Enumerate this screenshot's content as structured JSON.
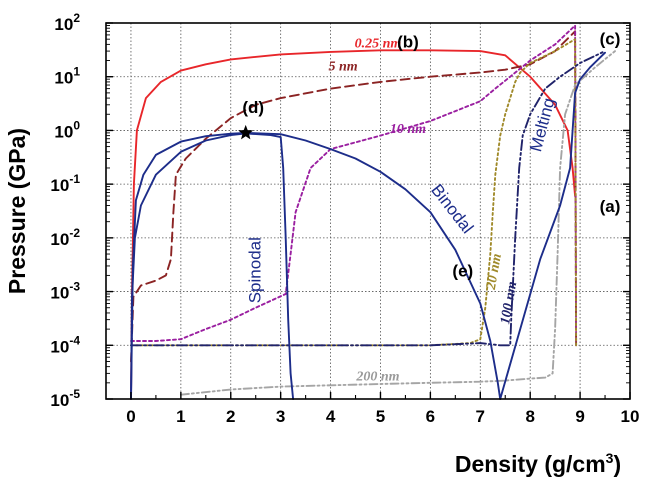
{
  "chart_data": {
    "type": "line",
    "xlabel": "Density (g/cm",
    "xlabel_sup": "3",
    "xlabel_tail": ")",
    "ylabel": "Pressure (GPa)",
    "y_scale": "log",
    "xlim": [
      -0.5,
      10
    ],
    "ylim": [
      1e-05,
      100
    ],
    "x_ticks": [
      "0",
      "1",
      "2",
      "3",
      "4",
      "5",
      "6",
      "7",
      "8",
      "9",
      "10"
    ],
    "y_ticks": [
      {
        "base": "10",
        "exp": "-5"
      },
      {
        "base": "10",
        "exp": "-4"
      },
      {
        "base": "10",
        "exp": "-3"
      },
      {
        "base": "10",
        "exp": "-2"
      },
      {
        "base": "10",
        "exp": "-1"
      },
      {
        "base": "10",
        "exp": "0"
      },
      {
        "base": "10",
        "exp": "1"
      },
      {
        "base": "10",
        "exp": "2"
      }
    ],
    "grid": true,
    "series": [
      {
        "name": "0.25 nm",
        "color": "#e8262a",
        "dash": "solid",
        "points": [
          [
            0,
            1e-05
          ],
          [
            0.02,
            0.001
          ],
          [
            0.06,
            0.1
          ],
          [
            0.12,
            1
          ],
          [
            0.3,
            4
          ],
          [
            0.6,
            8
          ],
          [
            1.0,
            13
          ],
          [
            1.5,
            17
          ],
          [
            2,
            21
          ],
          [
            3,
            26
          ],
          [
            4,
            29
          ],
          [
            5,
            31
          ],
          [
            6,
            31
          ],
          [
            7,
            30
          ],
          [
            7.5,
            25
          ],
          [
            8,
            10
          ],
          [
            8.5,
            3
          ],
          [
            8.75,
            1
          ],
          [
            8.85,
            0.2
          ],
          [
            8.9,
            0.06
          ]
        ]
      },
      {
        "name": "5 nm",
        "color": "#8b2323",
        "dash": "9,5",
        "points": [
          [
            0,
            5e-05
          ],
          [
            0.05,
            0.0008
          ],
          [
            0.2,
            0.0013
          ],
          [
            0.5,
            0.0016
          ],
          [
            0.7,
            0.002
          ],
          [
            0.8,
            0.004
          ],
          [
            0.85,
            0.03
          ],
          [
            0.9,
            0.15
          ],
          [
            1.1,
            0.3
          ],
          [
            1.5,
            0.7
          ],
          [
            2,
            1.7
          ],
          [
            2.5,
            3
          ],
          [
            3,
            4
          ],
          [
            4,
            6
          ],
          [
            5,
            8
          ],
          [
            6,
            10
          ],
          [
            7,
            12
          ],
          [
            7.5,
            13.5
          ],
          [
            8,
            17
          ],
          [
            8.5,
            30
          ],
          [
            8.9,
            70
          ],
          [
            8.92,
            0.0001
          ]
        ]
      },
      {
        "name": "10 nm",
        "color": "#9a1fa0",
        "dash": "3,3",
        "points": [
          [
            0,
            0.00012
          ],
          [
            0.5,
            0.00012
          ],
          [
            1,
            0.00013
          ],
          [
            1.5,
            0.0002
          ],
          [
            2,
            0.0003
          ],
          [
            2.5,
            0.0005
          ],
          [
            3.1,
            0.0009
          ],
          [
            3.2,
            0.005
          ],
          [
            3.3,
            0.03
          ],
          [
            3.6,
            0.2
          ],
          [
            4,
            0.45
          ],
          [
            5,
            0.8
          ],
          [
            6,
            1.5
          ],
          [
            7,
            3.5
          ],
          [
            7.3,
            6
          ],
          [
            7.6,
            10
          ],
          [
            8,
            20
          ],
          [
            8.5,
            40
          ],
          [
            8.9,
            90
          ],
          [
            8.92,
            0.0001
          ]
        ]
      },
      {
        "name": "20 nm",
        "color": "#a08a2a",
        "dash": "2,3",
        "points": [
          [
            0,
            0.0001
          ],
          [
            1,
            0.0001
          ],
          [
            2,
            0.0001
          ],
          [
            3,
            0.0001
          ],
          [
            4,
            0.0001
          ],
          [
            5,
            0.0001
          ],
          [
            6,
            0.0001
          ],
          [
            6.8,
            0.00011
          ],
          [
            7,
            0.00013
          ],
          [
            7.1,
            0.0005
          ],
          [
            7.2,
            0.005
          ],
          [
            7.25,
            0.03
          ],
          [
            7.3,
            0.15
          ],
          [
            7.4,
            0.8
          ],
          [
            7.5,
            2
          ],
          [
            7.6,
            4
          ],
          [
            7.7,
            8
          ],
          [
            7.8,
            12
          ],
          [
            8,
            18
          ],
          [
            8.5,
            30
          ],
          [
            8.9,
            50
          ],
          [
            8.92,
            0.0001
          ]
        ]
      },
      {
        "name": "100 nm",
        "color": "#20236a",
        "dash": "10,3,2,3,2,3",
        "points": [
          [
            0,
            0.0001
          ],
          [
            1,
            0.0001
          ],
          [
            2,
            0.0001
          ],
          [
            3,
            0.0001
          ],
          [
            4,
            0.0001
          ],
          [
            5,
            0.0001
          ],
          [
            6,
            0.0001
          ],
          [
            7,
            0.00011
          ],
          [
            7.4,
            0.0001
          ],
          [
            7.6,
            0.0001
          ],
          [
            7.62,
            0.0003
          ],
          [
            7.7,
            0.01
          ],
          [
            7.78,
            0.2
          ],
          [
            7.85,
            0.8
          ],
          [
            8.0,
            2
          ],
          [
            8.3,
            6
          ],
          [
            8.6,
            10
          ],
          [
            9,
            18
          ],
          [
            9.5,
            30
          ]
        ]
      },
      {
        "name": "200 nm",
        "color": "#a5a5a5",
        "dash": "8,3,2,3,2,3",
        "points": [
          [
            1,
            1.2e-05
          ],
          [
            2,
            1.5e-05
          ],
          [
            3,
            1.7e-05
          ],
          [
            4,
            1.8e-05
          ],
          [
            5,
            1.9e-05
          ],
          [
            6,
            2e-05
          ],
          [
            7,
            2.1e-05
          ],
          [
            7.5,
            2.2e-05
          ],
          [
            8,
            2.4e-05
          ],
          [
            8.3,
            2.5e-05
          ],
          [
            8.45,
            3e-05
          ],
          [
            8.5,
            0.0002
          ],
          [
            8.55,
            0.005
          ],
          [
            8.6,
            0.2
          ],
          [
            8.7,
            2
          ],
          [
            8.9,
            7
          ],
          [
            9.3,
            15
          ],
          [
            9.7,
            30
          ]
        ]
      },
      {
        "name": "Binodal",
        "color": "#1d2d8a",
        "dash": "solid",
        "points": [
          [
            0,
            1e-05
          ],
          [
            0.04,
            0.003
          ],
          [
            0.1,
            0.05
          ],
          [
            0.25,
            0.15
          ],
          [
            0.5,
            0.35
          ],
          [
            1,
            0.62
          ],
          [
            1.5,
            0.78
          ],
          [
            2,
            0.87
          ],
          [
            2.3,
            0.9
          ],
          [
            3,
            0.85
          ],
          [
            3.5,
            0.65
          ],
          [
            4,
            0.45
          ],
          [
            4.5,
            0.3
          ],
          [
            5,
            0.17
          ],
          [
            5.5,
            0.08
          ],
          [
            6,
            0.03
          ],
          [
            6.5,
            0.006
          ],
          [
            7,
            0.0006
          ],
          [
            7.2,
            0.00012
          ],
          [
            7.35,
            2e-05
          ],
          [
            7.4,
            1e-05
          ]
        ]
      },
      {
        "name": "Spinodal",
        "color": "#1d2d8a",
        "dash": "solid",
        "points": [
          [
            0,
            1e-05
          ],
          [
            0.02,
            0.0008
          ],
          [
            0.08,
            0.01
          ],
          [
            0.2,
            0.04
          ],
          [
            0.5,
            0.15
          ],
          [
            1,
            0.4
          ],
          [
            1.5,
            0.65
          ],
          [
            2,
            0.82
          ],
          [
            2.3,
            0.88
          ],
          [
            2.8,
            0.82
          ],
          [
            3.0,
            0.75
          ],
          [
            3.05,
            0.2
          ],
          [
            3.1,
            0.01
          ],
          [
            3.15,
            0.0003
          ],
          [
            3.2,
            3e-05
          ],
          [
            3.25,
            1e-05
          ]
        ]
      },
      {
        "name": "Melting",
        "color": "#1d2d8a",
        "dash": "solid",
        "points": [
          [
            7.4,
            1e-05
          ],
          [
            7.8,
            0.0002
          ],
          [
            8.2,
            0.004
          ],
          [
            8.6,
            0.04
          ],
          [
            8.8,
            0.2
          ],
          [
            8.85,
            1
          ],
          [
            8.9,
            5
          ],
          [
            9.0,
            9
          ],
          [
            9.2,
            15
          ],
          [
            9.5,
            28
          ]
        ]
      }
    ],
    "critical_point": {
      "x": 2.3,
      "y": 0.9
    },
    "annotations": [
      {
        "text": "0.25 nm",
        "style": "italic",
        "color": "#e8262a",
        "x": 4.95,
        "y": 35
      },
      {
        "text": "(b)",
        "style": "letter",
        "color": "#000000",
        "x": 5.55,
        "y": 35
      },
      {
        "text": "5 nm",
        "style": "italic",
        "color": "#8b2323",
        "x": 4.25,
        "y": 13
      },
      {
        "text": "(d)",
        "style": "letter",
        "color": "#000000",
        "x": 2.45,
        "y": 2.1
      },
      {
        "text": "10 nm",
        "style": "italic",
        "color": "#9a1fa0",
        "x": 5.55,
        "y": 0.9
      },
      {
        "text": "(c)",
        "style": "letter",
        "color": "#000000",
        "x": 9.6,
        "y": 40
      },
      {
        "text": "(a)",
        "style": "letter",
        "color": "#000000",
        "x": 9.6,
        "y": 0.03
      },
      {
        "text": "(e)",
        "style": "letter",
        "color": "#000000",
        "x": 6.65,
        "y": 0.0019
      },
      {
        "text": "200 nm",
        "style": "italic",
        "color": "#9a9a9a",
        "x": 4.95,
        "y": 2.2e-05
      },
      {
        "text": "Spinodal",
        "style": "region",
        "color": "#1d2d8a",
        "x": 2.6,
        "y": 0.0025,
        "rotate": -90
      },
      {
        "text": "Binodal",
        "style": "region",
        "color": "#1d2d8a",
        "x": 6.35,
        "y": 0.03,
        "rotate": 52
      },
      {
        "text": "Melting",
        "style": "region",
        "color": "#1d2d8a",
        "x": 8.35,
        "y": 1.2,
        "rotate": -75
      },
      {
        "text": "20 nm",
        "style": "italic",
        "color": "#a08a2a",
        "x": 7.35,
        "y": 0.0023,
        "rotate": -80
      },
      {
        "text": "100 nm",
        "style": "italic",
        "color": "#20236a",
        "x": 7.65,
        "y": 0.0006,
        "rotate": -80
      }
    ]
  }
}
